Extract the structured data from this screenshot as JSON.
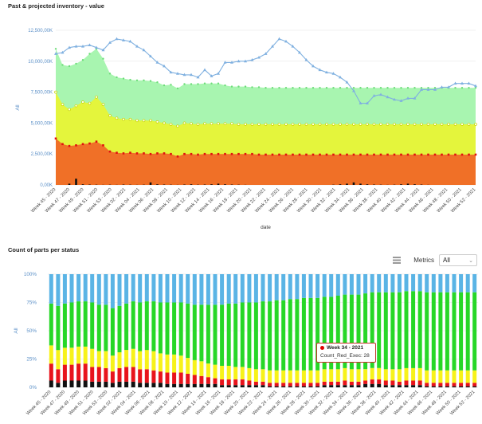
{
  "chart_data": [
    {
      "type": "area",
      "title": "Past & projected inventory - value",
      "xlabel": "date",
      "ylabel": "All",
      "ylim": [
        0,
        12500000
      ],
      "y_ticks": [
        "0,00K",
        "2,500,00K",
        "5,000,00K",
        "7,500,00K",
        "10,000,00K",
        "12,500,00K"
      ],
      "x_tick_labels": [
        "Week 45 - 2020",
        "Week 47 - 2020",
        "Week 49 - 2020",
        "Week 51 - 2020",
        "Week 53 - 2020",
        "Week 02 - 2021",
        "Week 04 - 2021",
        "Week 06 - 2021",
        "Week 08 - 2021",
        "Week 10 - 2021",
        "Week 12 - 2021",
        "Week 14 - 2021",
        "Week 16 - 2021",
        "Week 18 - 2021",
        "Week 20 - 2021",
        "Week 22 - 2021",
        "Week 24 - 2021",
        "Week 26 - 2021",
        "Week 28 - 2021",
        "Week 30 - 2021",
        "Week 32 - 2021",
        "Week 34 - 2021",
        "Week 36 - 2021",
        "Week 38 - 2021",
        "Week 40 - 2021",
        "Week 42 - 2021",
        "Week 44 - 2021",
        "Week 46 - 2021",
        "Week 48 - 2021",
        "Week 50 - 2021",
        "Week 52 - 2021"
      ],
      "grid": true,
      "series": [
        {
          "color": "#f07027",
          "values": [
            3750000,
            3300000,
            3150000,
            3200000,
            3300000,
            3350000,
            3500000,
            3200000,
            2700000,
            2600000,
            2550000,
            2600000,
            2550000,
            2550000,
            2500000,
            2550000,
            2550000,
            2500000,
            2300000,
            2500000,
            2500000,
            2450000,
            2500000,
            2500000,
            2500000,
            2500000,
            2500000,
            2500000,
            2500000,
            2500000,
            2450000,
            2450000,
            2450000,
            2450000,
            2450000,
            2450000,
            2450000,
            2450000,
            2450000,
            2450000,
            2450000,
            2450000,
            2450000,
            2450000,
            2450000,
            2450000,
            2450000,
            2450000,
            2450000,
            2450000,
            2450000,
            2450000,
            2450000,
            2450000,
            2450000,
            2450000,
            2450000,
            2450000,
            2450000,
            2450000,
            2450000,
            2450000,
            2450000
          ]
        },
        {
          "color": "#e4f53c",
          "values": [
            7500000,
            6500000,
            6100000,
            6400000,
            6700000,
            6600000,
            7100000,
            6500000,
            5600000,
            5400000,
            5300000,
            5300000,
            5200000,
            5200000,
            5200000,
            5100000,
            5000000,
            4900000,
            4750000,
            5000000,
            4950000,
            4900000,
            4950000,
            4950000,
            4950000,
            4950000,
            4950000,
            4900000,
            4900000,
            4900000,
            4900000,
            4900000,
            4900000,
            4900000,
            4900000,
            4900000,
            4900000,
            4900000,
            4900000,
            4900000,
            4900000,
            4900000,
            4900000,
            4900000,
            4900000,
            4900000,
            4900000,
            4900000,
            4900000,
            4900000,
            4900000,
            4900000,
            4900000,
            4900000,
            4900000,
            4900000,
            4900000,
            4900000,
            4900000,
            4900000,
            4900000,
            4900000,
            4900000
          ]
        },
        {
          "color": "#a8f5b0",
          "values": [
            11000000,
            9700000,
            9600000,
            9800000,
            10100000,
            10600000,
            11000000,
            10200000,
            9000000,
            8700000,
            8600000,
            8500000,
            8450000,
            8450000,
            8400000,
            8300000,
            8050000,
            8100000,
            7800000,
            8150000,
            8150000,
            8150000,
            8200000,
            8200000,
            8200000,
            8050000,
            7950000,
            7950000,
            7950000,
            7900000,
            7900000,
            7850000,
            7850000,
            7850000,
            7850000,
            7850000,
            7850000,
            7850000,
            7850000,
            7850000,
            7850000,
            7850000,
            7850000,
            7850000,
            7850000,
            7850000,
            7850000,
            7850000,
            7850000,
            7850000,
            7850000,
            7850000,
            7850000,
            7850000,
            7850000,
            7850000,
            7850000,
            7850000,
            7850000,
            7850000,
            7850000,
            7850000,
            7850000
          ]
        },
        {
          "type": "line",
          "color": "#7fb0e0",
          "values": [
            10600000,
            10700000,
            11100000,
            11200000,
            11200000,
            11300000,
            11100000,
            10900000,
            11500000,
            11800000,
            11700000,
            11600000,
            11200000,
            10900000,
            10400000,
            9900000,
            9600000,
            9100000,
            9000000,
            8900000,
            8900000,
            8700000,
            9300000,
            8800000,
            9000000,
            9900000,
            9900000,
            10000000,
            10000000,
            10100000,
            10300000,
            10600000,
            11200000,
            11800000,
            11600000,
            11200000,
            10700000,
            10100000,
            9600000,
            9300000,
            9100000,
            9000000,
            8700000,
            8300000,
            7600000,
            6600000,
            6600000,
            7200000,
            7300000,
            7100000,
            6900000,
            6800000,
            7000000,
            7000000,
            7700000,
            7700000,
            7700000,
            7900000,
            7900000,
            8200000,
            8200000,
            8200000,
            8000000
          ]
        },
        {
          "color": "#111111",
          "values": [
            0,
            0,
            100000,
            500000,
            50000,
            30000,
            20000,
            10000,
            20000,
            10000,
            30000,
            20000,
            10000,
            20000,
            200000,
            50000,
            30000,
            20000,
            10000,
            30000,
            50000,
            20000,
            30000,
            50000,
            100000,
            50000,
            30000,
            20000,
            10000,
            0,
            0,
            0,
            0,
            0,
            0,
            0,
            0,
            0,
            0,
            0,
            0,
            20000,
            50000,
            100000,
            200000,
            100000,
            50000,
            30000,
            20000,
            10000,
            20000,
            50000,
            100000,
            50000,
            30000,
            10000,
            0,
            0,
            0,
            0,
            0,
            0,
            0
          ]
        }
      ]
    },
    {
      "type": "bar",
      "title": "Count of parts per status",
      "xlabel": "",
      "ylabel": "All",
      "ylim": [
        0,
        100
      ],
      "y_ticks": [
        "0%",
        "25%",
        "50%",
        "75%",
        "100%"
      ],
      "x_tick_labels": [
        "Week 45 - 2020",
        "Week 47 - 2020",
        "Week 49 - 2020",
        "Week 51 - 2020",
        "Week 53 - 2020",
        "Week 02 - 2021",
        "Week 04 - 2021",
        "Week 06 - 2021",
        "Week 08 - 2021",
        "Week 10 - 2021",
        "Week 12 - 2021",
        "Week 14 - 2021",
        "Week 16 - 2021",
        "Week 18 - 2021",
        "Week 20 - 2021",
        "Week 22 - 2021",
        "Week 24 - 2021",
        "Week 26 - 2021",
        "Week 28 - 2021",
        "Week 30 - 2021",
        "Week 32 - 2021",
        "Week 34 - 2021",
        "Week 36 - 2021",
        "Week 38 - 2021",
        "Week 40 - 2021",
        "Week 42 - 2021",
        "Week 44 - 2021",
        "Week 46 - 2021",
        "Week 48 - 2021",
        "Week 50 - 2021",
        "Week 52 - 2021"
      ],
      "stack_colors": [
        "#111111",
        "#e8141c",
        "#f7f21a",
        "#27d727",
        "#5ab4e5"
      ],
      "series": [
        {
          "color": "#111111",
          "values": [
            6,
            4,
            6,
            6,
            6,
            6,
            5,
            5,
            5,
            4,
            5,
            5,
            5,
            4,
            4,
            4,
            4,
            3,
            3,
            3,
            3,
            3,
            3,
            3,
            3,
            2,
            2,
            2,
            2,
            2,
            2,
            2,
            1,
            1,
            1,
            1,
            1,
            1,
            1,
            1,
            2,
            2,
            2,
            2,
            2,
            2,
            3,
            3,
            3,
            2,
            2,
            2,
            2,
            2,
            2,
            1,
            1,
            1,
            1,
            1,
            1,
            1,
            1
          ]
        },
        {
          "color": "#e8141c",
          "values": [
            15,
            12,
            14,
            14,
            15,
            15,
            13,
            13,
            12,
            10,
            12,
            13,
            13,
            12,
            12,
            11,
            10,
            10,
            10,
            10,
            9,
            8,
            7,
            6,
            5,
            5,
            5,
            5,
            5,
            4,
            3,
            3,
            3,
            3,
            3,
            3,
            3,
            3,
            3,
            3,
            3,
            3,
            3,
            4,
            3,
            3,
            3,
            4,
            4,
            4,
            4,
            3,
            4,
            4,
            4,
            3,
            3,
            3,
            3,
            3,
            3,
            3,
            3
          ]
        },
        {
          "color": "#f7f21a",
          "values": [
            16,
            17,
            15,
            15,
            15,
            15,
            16,
            14,
            15,
            14,
            14,
            15,
            16,
            16,
            17,
            17,
            16,
            16,
            16,
            15,
            14,
            13,
            13,
            12,
            12,
            12,
            12,
            11,
            11,
            11,
            11,
            11,
            11,
            11,
            11,
            11,
            11,
            11,
            11,
            11,
            11,
            11,
            11,
            11,
            11,
            11,
            10,
            10,
            10,
            10,
            10,
            11,
            11,
            11,
            11,
            11,
            11,
            11,
            11,
            11,
            11,
            11,
            11
          ]
        },
        {
          "color": "#27d727",
          "values": [
            37,
            39,
            39,
            40,
            40,
            40,
            41,
            41,
            41,
            42,
            41,
            41,
            42,
            43,
            43,
            44,
            45,
            46,
            46,
            47,
            48,
            49,
            50,
            52,
            53,
            54,
            55,
            56,
            57,
            58,
            59,
            60,
            61,
            62,
            62,
            63,
            63,
            64,
            64,
            64,
            64,
            64,
            65,
            65,
            66,
            66,
            67,
            67,
            67,
            68,
            68,
            68,
            68,
            68,
            68,
            69,
            69,
            69,
            69,
            69,
            69,
            69,
            69
          ]
        },
        {
          "color": "#5ab4e5",
          "values": [
            26,
            28,
            26,
            25,
            24,
            24,
            25,
            27,
            27,
            30,
            28,
            26,
            24,
            25,
            24,
            24,
            25,
            25,
            25,
            25,
            26,
            27,
            27,
            27,
            27,
            27,
            26,
            26,
            25,
            25,
            25,
            24,
            24,
            23,
            23,
            22,
            22,
            21,
            21,
            21,
            20,
            20,
            19,
            18,
            18,
            18,
            17,
            16,
            16,
            16,
            16,
            16,
            15,
            15,
            15,
            16,
            16,
            16,
            16,
            16,
            16,
            16,
            16
          ]
        }
      ]
    }
  ],
  "controls": {
    "metrics_label": "Metrics",
    "metrics_value": "All"
  },
  "tooltip": {
    "title": "Week 34 - 2021",
    "line": "Count_Red_Exec: 28"
  }
}
